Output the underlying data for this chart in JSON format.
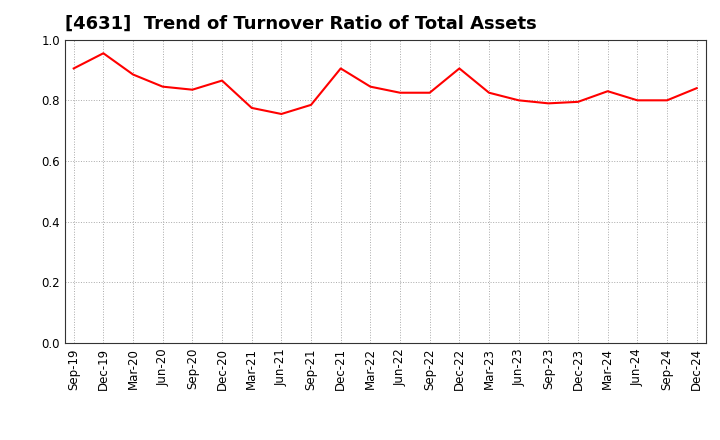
{
  "title": "[4631]  Trend of Turnover Ratio of Total Assets",
  "line_color": "#FF0000",
  "background_color": "#FFFFFF",
  "grid_color": "#AAAAAA",
  "ylim": [
    0.0,
    1.0
  ],
  "yticks": [
    0.0,
    0.2,
    0.4,
    0.6,
    0.8,
    1.0
  ],
  "x_labels": [
    "Sep-19",
    "Dec-19",
    "Mar-20",
    "Jun-20",
    "Sep-20",
    "Dec-20",
    "Mar-21",
    "Jun-21",
    "Sep-21",
    "Dec-21",
    "Mar-22",
    "Jun-22",
    "Sep-22",
    "Dec-22",
    "Mar-23",
    "Jun-23",
    "Sep-23",
    "Dec-23",
    "Mar-24",
    "Jun-24",
    "Sep-24",
    "Dec-24"
  ],
  "values": [
    0.905,
    0.955,
    0.885,
    0.845,
    0.835,
    0.865,
    0.775,
    0.755,
    0.785,
    0.905,
    0.845,
    0.825,
    0.825,
    0.905,
    0.825,
    0.8,
    0.79,
    0.795,
    0.83,
    0.8,
    0.8,
    0.84
  ],
  "title_fontsize": 13,
  "tick_fontsize": 8.5
}
